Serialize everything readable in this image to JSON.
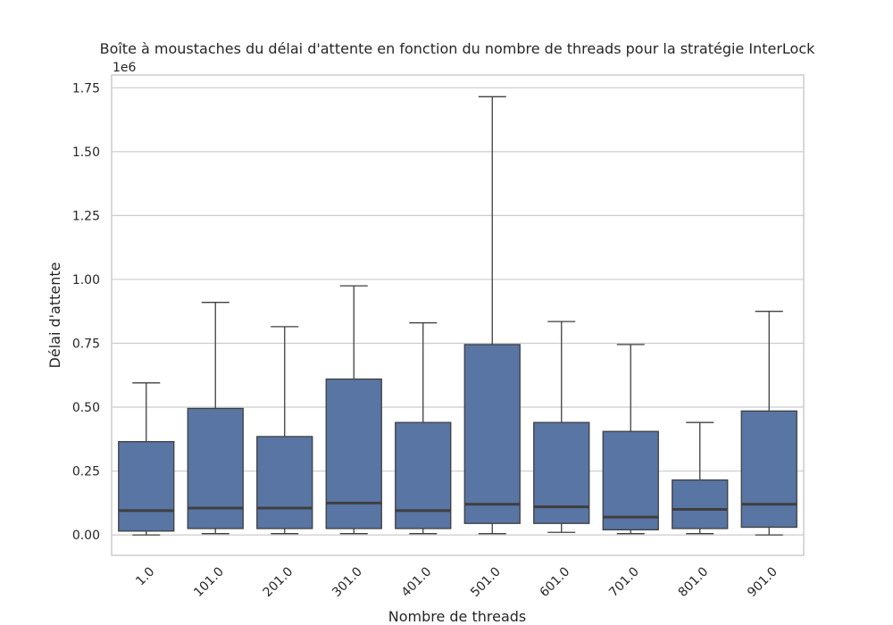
{
  "chart_data": {
    "type": "box",
    "title": "Boîte à moustaches du délai d'attente en fonction du nombre de threads pour la stratégie InterLock",
    "xlabel": "Nombre de threads",
    "ylabel": "Délai d'attente",
    "y_offset_label": "1e6",
    "ylim": [
      -80000,
      1800000
    ],
    "yticks": [
      0,
      250000,
      500000,
      750000,
      1000000,
      1250000,
      1500000,
      1750000
    ],
    "ytick_labels": [
      "0.00",
      "0.25",
      "0.50",
      "0.75",
      "1.00",
      "1.25",
      "1.50",
      "1.75"
    ],
    "grid": true,
    "box_color": "#5875a4",
    "categories": [
      "1.0",
      "101.0",
      "201.0",
      "301.0",
      "401.0",
      "501.0",
      "601.0",
      "701.0",
      "801.0",
      "901.0"
    ],
    "boxes": [
      {
        "whislo": 0,
        "q1": 15000,
        "median": 95000,
        "q3": 365000,
        "whishi": 595000
      },
      {
        "whislo": 5000,
        "q1": 25000,
        "median": 105000,
        "q3": 495000,
        "whishi": 910000
      },
      {
        "whislo": 5000,
        "q1": 25000,
        "median": 105000,
        "q3": 385000,
        "whishi": 815000
      },
      {
        "whislo": 5000,
        "q1": 25000,
        "median": 125000,
        "q3": 610000,
        "whishi": 975000
      },
      {
        "whislo": 5000,
        "q1": 25000,
        "median": 95000,
        "q3": 440000,
        "whishi": 830000
      },
      {
        "whislo": 5000,
        "q1": 45000,
        "median": 120000,
        "q3": 745000,
        "whishi": 1715000
      },
      {
        "whislo": 10000,
        "q1": 45000,
        "median": 110000,
        "q3": 440000,
        "whishi": 835000
      },
      {
        "whislo": 5000,
        "q1": 20000,
        "median": 70000,
        "q3": 405000,
        "whishi": 745000
      },
      {
        "whislo": 5000,
        "q1": 25000,
        "median": 100000,
        "q3": 215000,
        "whishi": 440000
      },
      {
        "whislo": 0,
        "q1": 30000,
        "median": 120000,
        "q3": 485000,
        "whishi": 875000
      }
    ]
  }
}
